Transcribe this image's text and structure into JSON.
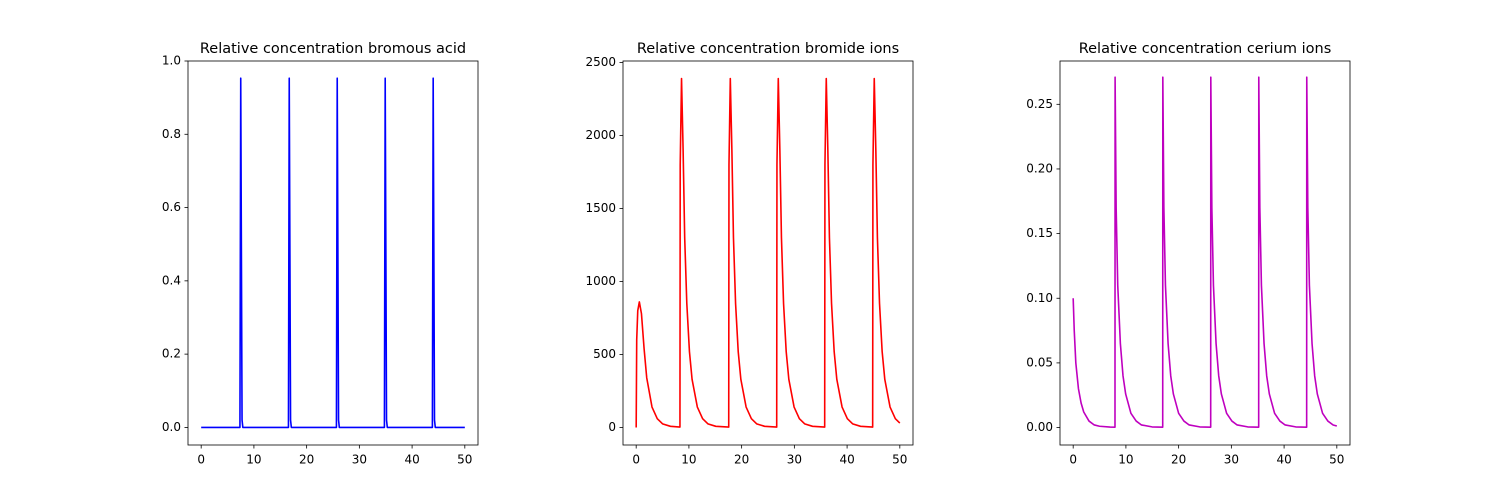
{
  "chart_data": [
    {
      "type": "line",
      "title": "Relative concentration bromous acid",
      "color": "#0000ff",
      "x": [
        0,
        7.35,
        7.5,
        7.75,
        7.9,
        16.55,
        16.7,
        16.95,
        17.1,
        25.65,
        25.8,
        26.05,
        26.2,
        34.75,
        34.9,
        35.15,
        35.3,
        43.85,
        44.0,
        44.25,
        44.4,
        50
      ],
      "values": [
        0,
        0,
        0.953,
        0.02,
        0,
        0,
        0.953,
        0.02,
        0,
        0,
        0.953,
        0.02,
        0,
        0,
        0.953,
        0.02,
        0,
        0,
        0.953,
        0.02,
        0,
        0
      ],
      "xlim": [
        -2.5,
        52.5
      ],
      "ylim": [
        -0.048,
        1.0
      ],
      "xticks": [
        0,
        10,
        20,
        30,
        40,
        50
      ],
      "yticks": [
        {
          "value": 0,
          "label": "0.0"
        },
        0.2,
        0.4,
        0.6,
        0.8,
        {
          "value": 1,
          "label": "1.0"
        }
      ]
    },
    {
      "type": "line",
      "title": "Relative concentration bromide ions",
      "color": "#ff0000",
      "x": [
        0,
        0.1,
        0.3,
        0.6,
        1.0,
        1.5,
        2,
        3,
        4,
        5,
        6.5,
        8.3,
        8.35,
        8.6,
        8.9,
        9.2,
        9.6,
        10.1,
        10.6,
        11.6,
        12.6,
        13.6,
        15.1,
        17.55,
        17.6,
        17.85,
        18.15,
        18.45,
        18.85,
        19.35,
        19.85,
        20.85,
        21.85,
        22.85,
        24.35,
        26.65,
        26.7,
        26.95,
        27.25,
        27.55,
        27.95,
        28.45,
        28.95,
        29.95,
        30.95,
        31.95,
        33.45,
        35.75,
        35.8,
        36.05,
        36.35,
        36.65,
        37.05,
        37.55,
        38.05,
        39.05,
        40.05,
        41.05,
        42.55,
        44.85,
        44.9,
        45.15,
        45.45,
        45.75,
        46.15,
        46.65,
        47.15,
        48.15,
        49.15,
        50
      ],
      "values": [
        0,
        600,
        800,
        860,
        780,
        540,
        340,
        140,
        60,
        25,
        8,
        3,
        1800,
        2390,
        1900,
        1300,
        850,
        520,
        330,
        140,
        60,
        25,
        8,
        3,
        1800,
        2390,
        1900,
        1300,
        850,
        520,
        330,
        140,
        60,
        25,
        8,
        3,
        1800,
        2390,
        1900,
        1300,
        850,
        520,
        330,
        140,
        60,
        25,
        8,
        3,
        1800,
        2390,
        1900,
        1300,
        850,
        520,
        330,
        140,
        60,
        25,
        8,
        3,
        1800,
        2390,
        1900,
        1300,
        850,
        520,
        330,
        140,
        60,
        30
      ],
      "xlim": [
        -2.5,
        52.5
      ],
      "ylim": [
        -120,
        2510
      ],
      "xticks": [
        0,
        10,
        20,
        30,
        40,
        50
      ],
      "yticks": [
        0,
        500,
        1000,
        1500,
        2000,
        2500
      ]
    },
    {
      "type": "line",
      "title": "Relative concentration cerium ions",
      "color": "#bf00bf",
      "x": [
        0,
        0.2,
        0.5,
        1,
        1.5,
        2,
        3,
        4,
        5,
        7,
        7.93,
        7.95,
        8.15,
        8.45,
        8.95,
        9.45,
        9.95,
        10.95,
        11.95,
        12.95,
        14.95,
        16.98,
        17.0,
        17.2,
        17.5,
        18.0,
        18.5,
        19.0,
        20.0,
        21.0,
        22.0,
        24.0,
        26.08,
        26.1,
        26.3,
        26.6,
        27.1,
        27.6,
        28.1,
        29.1,
        30.1,
        31.1,
        33.1,
        35.18,
        35.2,
        35.4,
        35.7,
        36.2,
        36.7,
        37.2,
        38.2,
        39.2,
        40.2,
        42.2,
        44.28,
        44.3,
        44.5,
        44.8,
        45.3,
        45.8,
        46.3,
        47.3,
        48.3,
        49.3,
        50
      ],
      "values": [
        0.1,
        0.075,
        0.05,
        0.03,
        0.019,
        0.012,
        0.005,
        0.002,
        0.001,
        0.0004,
        0.0003,
        0.271,
        0.17,
        0.11,
        0.065,
        0.04,
        0.026,
        0.011,
        0.005,
        0.002,
        0.0005,
        0.0003,
        0.271,
        0.17,
        0.11,
        0.065,
        0.04,
        0.026,
        0.011,
        0.005,
        0.002,
        0.0005,
        0.0003,
        0.271,
        0.17,
        0.11,
        0.065,
        0.04,
        0.026,
        0.011,
        0.005,
        0.002,
        0.0005,
        0.0003,
        0.271,
        0.17,
        0.11,
        0.065,
        0.04,
        0.026,
        0.011,
        0.005,
        0.002,
        0.0005,
        0.0003,
        0.271,
        0.17,
        0.11,
        0.065,
        0.04,
        0.026,
        0.011,
        0.005,
        0.002,
        0.0012
      ],
      "xlim": [
        -2.5,
        52.5
      ],
      "ylim": [
        -0.0135,
        0.2835
      ],
      "xticks": [
        0,
        10,
        20,
        30,
        40,
        50
      ],
      "yticks": [
        {
          "value": 0,
          "label": "0.00"
        },
        0.05,
        {
          "value": 0.1,
          "label": "0.10"
        },
        0.15,
        {
          "value": 0.2,
          "label": "0.20"
        },
        0.25
      ]
    }
  ]
}
